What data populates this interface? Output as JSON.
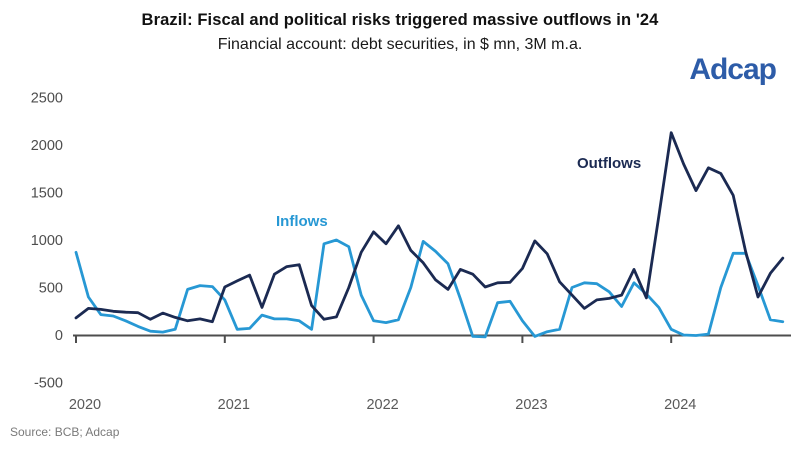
{
  "header": {
    "title": "Brazil: Fiscal and political risks triggered massive outflows in '24",
    "subtitle": "Financial account: debt securities, in $ mn, 3M m.a.",
    "logo": "Adcap"
  },
  "footer": {
    "source": "Source: BCB; Adcap"
  },
  "chart_data": {
    "type": "line",
    "title": "Brazil: Fiscal and political risks triggered massive outflows in '24",
    "subtitle": "Financial account: debt securities, in $ mn, 3M m.a.",
    "x_unit": "month",
    "x_range": [
      "2020-01",
      "2024-10"
    ],
    "x_tick_labels": [
      "2020",
      "2021",
      "2022",
      "2023",
      "2024"
    ],
    "y_ticks": [
      2500,
      2000,
      1500,
      1000,
      500,
      0,
      -500
    ],
    "ylim": [
      -500,
      2500
    ],
    "grid": false,
    "legend": "inline-labels",
    "axis_color": "#595959",
    "series": [
      {
        "name": "Inflows",
        "color": "#2798d4",
        "values": [
          870,
          400,
          215,
          200,
          150,
          90,
          40,
          30,
          60,
          480,
          520,
          510,
          370,
          60,
          70,
          210,
          170,
          170,
          150,
          60,
          960,
          1000,
          930,
          420,
          150,
          130,
          160,
          500,
          985,
          880,
          750,
          380,
          -15,
          -20,
          340,
          355,
          150,
          -15,
          35,
          60,
          500,
          550,
          540,
          455,
          300,
          550,
          430,
          290,
          60,
          0,
          -5,
          10,
          500,
          860,
          860,
          520,
          160,
          140
        ]
      },
      {
        "name": "Outflows",
        "color": "#1b2a52",
        "values": [
          180,
          280,
          270,
          250,
          240,
          235,
          165,
          230,
          185,
          150,
          170,
          140,
          505,
          570,
          630,
          290,
          640,
          720,
          740,
          310,
          165,
          190,
          500,
          870,
          1085,
          960,
          1150,
          890,
          760,
          580,
          480,
          690,
          640,
          505,
          550,
          555,
          700,
          990,
          855,
          560,
          420,
          280,
          370,
          385,
          420,
          690,
          390,
          1250,
          2130,
          1800,
          1520,
          1760,
          1700,
          1470,
          880,
          400,
          650,
          810
        ]
      }
    ]
  }
}
